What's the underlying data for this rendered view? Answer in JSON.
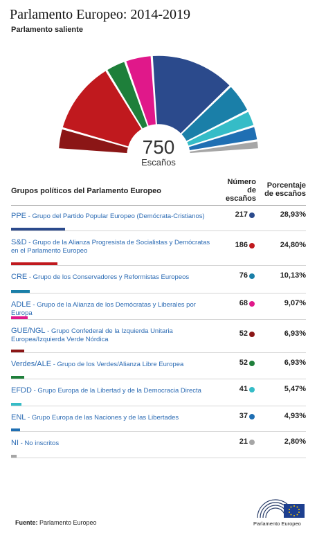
{
  "title": "Parlamento Europeo: 2014-2019",
  "subtitle": "Parlamento saliente",
  "center_value": "750",
  "center_label": "Escaños",
  "table": {
    "col_groups": "Grupos políticos del Parlamento Europeo",
    "col_seats_1": "Número",
    "col_seats_2": "de",
    "col_seats_3": "escaños",
    "col_pct_1": "Porcentaje",
    "col_pct_2": "de escaños"
  },
  "source_label": "Fuente:",
  "source_text": "Parlamento Europeo",
  "logo_text": "Parlamento Europeo",
  "chart_data": {
    "type": "pie",
    "title": "Parlamento Europeo: 2014-2019",
    "subtitle": "Parlamento saliente",
    "total": 750,
    "series": [
      {
        "abbr": "PPE",
        "name": "Grupo del Partido Popular Europeo (Demócrata-Cristianos)",
        "seats": 217,
        "pct": "28,93%",
        "color": "#2b4a8c"
      },
      {
        "abbr": "S&D",
        "name": "Grupo de la Alianza Progresista de Socialistas y Demócratas en el Parlamento Europeo",
        "seats": 186,
        "pct": "24,80%",
        "color": "#c0191e"
      },
      {
        "abbr": "CRE",
        "name": "Grupo de los Conservadores y Reformistas Europeos",
        "seats": 76,
        "pct": "10,13%",
        "color": "#1a7fa8"
      },
      {
        "abbr": "ADLE",
        "name": "Grupo de la Alianza de los Demócratas y Liberales por Europa",
        "seats": 68,
        "pct": "9,07%",
        "color": "#e0188a"
      },
      {
        "abbr": "GUE/NGL",
        "name": "Grupo Confederal de la Izquierda Unitaria Europea/Izquierda Verde Nórdica",
        "seats": 52,
        "pct": "6,93%",
        "color": "#8b1616"
      },
      {
        "abbr": "Verdes/ALE",
        "name": "Grupo de los Verdes/Alianza Libre Europea",
        "seats": 52,
        "pct": "6,93%",
        "color": "#1e7f3a"
      },
      {
        "abbr": "EFDD",
        "name": "Grupo Europa de la Libertad y de la Democracia Directa",
        "seats": 41,
        "pct": "5,47%",
        "color": "#35bcc7"
      },
      {
        "abbr": "ENL",
        "name": "Grupo Europa de las Naciones y de las Libertades",
        "seats": 37,
        "pct": "4,93%",
        "color": "#1f6fb3"
      },
      {
        "abbr": "NI",
        "name": "No inscritos",
        "seats": 21,
        "pct": "2,80%",
        "color": "#a6a6a6"
      }
    ],
    "hemicycle_order": [
      "GUE/NGL",
      "S&D",
      "Verdes/ALE",
      "ADLE",
      "PPE",
      "CRE",
      "EFDD",
      "ENL",
      "NI"
    ]
  }
}
